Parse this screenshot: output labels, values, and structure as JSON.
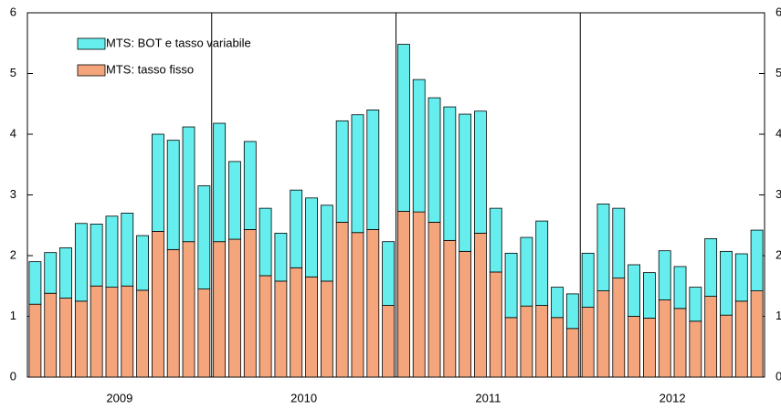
{
  "chart_data": {
    "type": "stacked-bar",
    "categories": [
      null,
      null,
      null,
      null,
      null,
      null,
      null,
      null,
      null,
      null,
      null,
      null,
      null,
      null,
      null,
      null,
      null,
      null,
      null,
      null,
      null,
      null,
      null,
      null,
      null,
      null,
      null,
      null,
      null,
      null,
      null,
      null,
      null,
      null,
      null,
      null,
      null,
      null,
      null,
      null,
      null,
      null,
      null,
      null,
      null,
      null,
      null,
      null
    ],
    "groups": [
      "2009",
      "2010",
      "2011",
      "2012"
    ],
    "series": [
      {
        "name": "MTS: BOT e tasso variabile",
        "color": "#66eeee",
        "values": [
          0.7,
          0.67,
          0.83,
          1.28,
          1.02,
          1.17,
          1.2,
          0.9,
          1.6,
          1.8,
          1.89,
          1.7,
          1.95,
          1.28,
          1.45,
          1.11,
          0.79,
          1.28,
          1.3,
          1.25,
          1.67,
          1.94,
          1.97,
          1.05,
          2.75,
          2.18,
          2.05,
          2.2,
          2.26,
          2.01,
          1.05,
          1.06,
          1.13,
          1.39,
          0.5,
          0.57,
          0.89,
          1.43,
          1.15,
          0.85,
          0.75,
          0.81,
          0.69,
          0.56,
          0.95,
          1.05,
          0.78,
          1.0
        ]
      },
      {
        "name": "MTS: tasso fisso",
        "color": "#f4a57c",
        "values": [
          1.2,
          1.38,
          1.3,
          1.25,
          1.5,
          1.48,
          1.5,
          1.43,
          2.4,
          2.1,
          2.23,
          1.45,
          2.23,
          2.27,
          2.43,
          1.67,
          1.58,
          1.8,
          1.65,
          1.58,
          2.55,
          2.38,
          2.43,
          1.18,
          2.73,
          2.72,
          2.55,
          2.25,
          2.07,
          2.37,
          1.73,
          0.98,
          1.17,
          1.18,
          0.98,
          0.8,
          1.15,
          1.42,
          1.63,
          1.0,
          0.97,
          1.27,
          1.13,
          0.92,
          1.33,
          1.02,
          1.25,
          1.42
        ]
      }
    ],
    "ylim": [
      0,
      6
    ],
    "yticks": [
      0,
      1,
      2,
      3,
      4,
      5,
      6
    ],
    "right_axis": true,
    "legend": "upper-left"
  }
}
